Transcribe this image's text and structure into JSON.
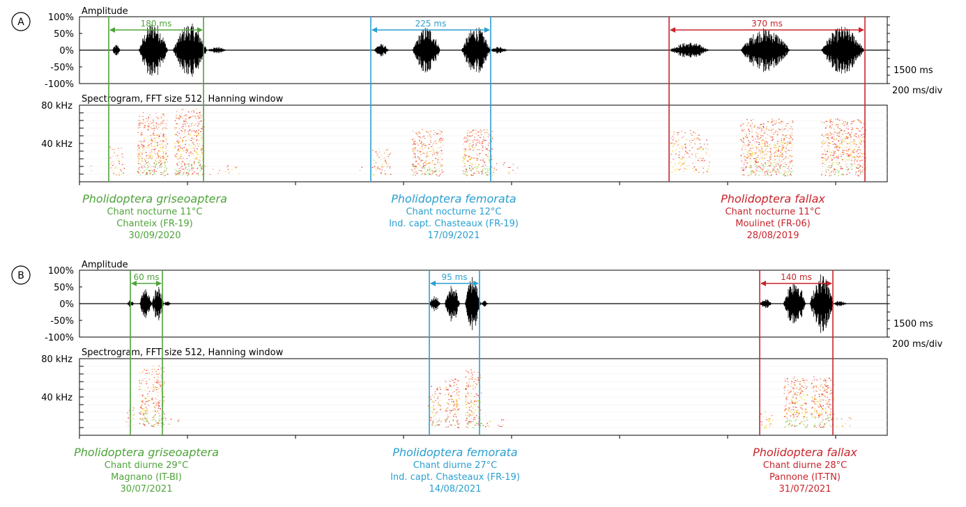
{
  "colors": {
    "green": "#4ea33a",
    "blue": "#2a9fd0",
    "red": "#c8242b"
  },
  "panels": [
    {
      "letter": "A",
      "amplitude_label": "Amplitude",
      "amp_ticks": [
        "100%",
        "50%",
        "0%",
        "-50%",
        "-100%"
      ],
      "spectro_label": "Spectrogram, FFT size 512, Hanning window",
      "freq_ticks": [
        "80 kHz",
        "40 kHz"
      ],
      "duration_label": "1500 ms",
      "scale_label": "200 ms/div",
      "species": [
        {
          "name": "Pholidoptera griseoaptera",
          "color": "green",
          "interval": "180 ms",
          "lines": [
            "Chant nocturne 11°C",
            "Chanteix (FR-19)",
            "30/09/2020"
          ]
        },
        {
          "name": "Pholidoptera femorata",
          "color": "blue",
          "interval": "225 ms",
          "lines": [
            "Chant nocturne 12°C",
            "Ind. capt. Chasteaux (FR-19)",
            "17/09/2021"
          ]
        },
        {
          "name": "Pholidoptera fallax",
          "color": "red",
          "interval": "370 ms",
          "lines": [
            "Chant nocturne 11°C",
            "Moulinet (FR-06)",
            "28/08/2019"
          ]
        }
      ]
    },
    {
      "letter": "B",
      "amplitude_label": "Amplitude",
      "amp_ticks": [
        "100%",
        "50%",
        "0%",
        "-50%",
        "-100%"
      ],
      "spectro_label": "Spectrogram, FFT size 512, Hanning window",
      "freq_ticks": [
        "80 kHz",
        "40 kHz"
      ],
      "duration_label": "1500 ms",
      "scale_label": "200 ms/div",
      "species": [
        {
          "name": "Pholidoptera griseoaptera",
          "color": "green",
          "interval": "60 ms",
          "lines": [
            "Chant diurne 29°C",
            "Magnano (IT-BI)",
            "30/07/2021"
          ]
        },
        {
          "name": "Pholidoptera femorata",
          "color": "blue",
          "interval": "95 ms",
          "lines": [
            "Chant diurne 27°C",
            "Ind. capt. Chasteaux (FR-19)",
            "14/08/2021"
          ]
        },
        {
          "name": "Pholidoptera fallax",
          "color": "red",
          "interval": "140 ms",
          "lines": [
            "Chant diurne 28°C",
            "Pannone (IT-TN)",
            "31/07/2021"
          ]
        }
      ]
    }
  ]
}
